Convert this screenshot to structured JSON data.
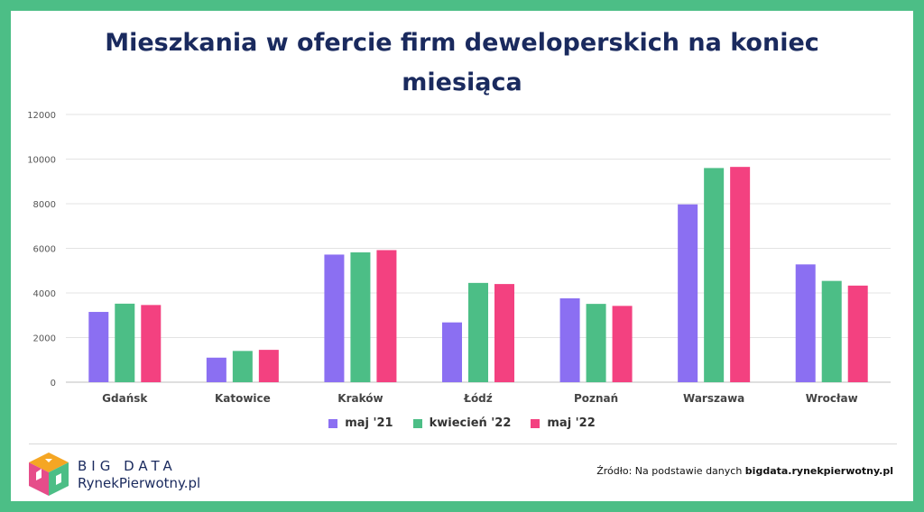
{
  "title_lines": [
    "Mieszkania w ofercie firm deweloperskich na koniec",
    "miesiąca"
  ],
  "chart_data": {
    "type": "bar",
    "title": "Mieszkania w ofercie firm deweloperskich na koniec miesiąca",
    "categories": [
      "Gdańsk",
      "Katowice",
      "Kraków",
      "Łódź",
      "Poznań",
      "Warszawa",
      "Wrocław"
    ],
    "series": [
      {
        "name": "maj '21",
        "color": "#8b6ff2",
        "values": [
          3150,
          1100,
          5720,
          2680,
          3760,
          7970,
          5280
        ]
      },
      {
        "name": "kwiecień '22",
        "color": "#4cbe86",
        "values": [
          3520,
          1400,
          5820,
          4450,
          3510,
          9600,
          4540
        ]
      },
      {
        "name": "maj '22",
        "color": "#f34180",
        "values": [
          3460,
          1450,
          5920,
          4400,
          3420,
          9650,
          4330
        ]
      }
    ],
    "ylim": [
      0,
      12000
    ],
    "yticks": [
      0,
      2000,
      4000,
      6000,
      8000,
      10000,
      12000
    ],
    "grid": true,
    "legend": "bottom"
  },
  "brand": {
    "line1": "BIG DATA",
    "line2": "RynekPierwotny.pl"
  },
  "source": {
    "prefix": "Źródło: Na podstawie danych ",
    "site": "bigdata.rynekpierwotny.pl"
  }
}
